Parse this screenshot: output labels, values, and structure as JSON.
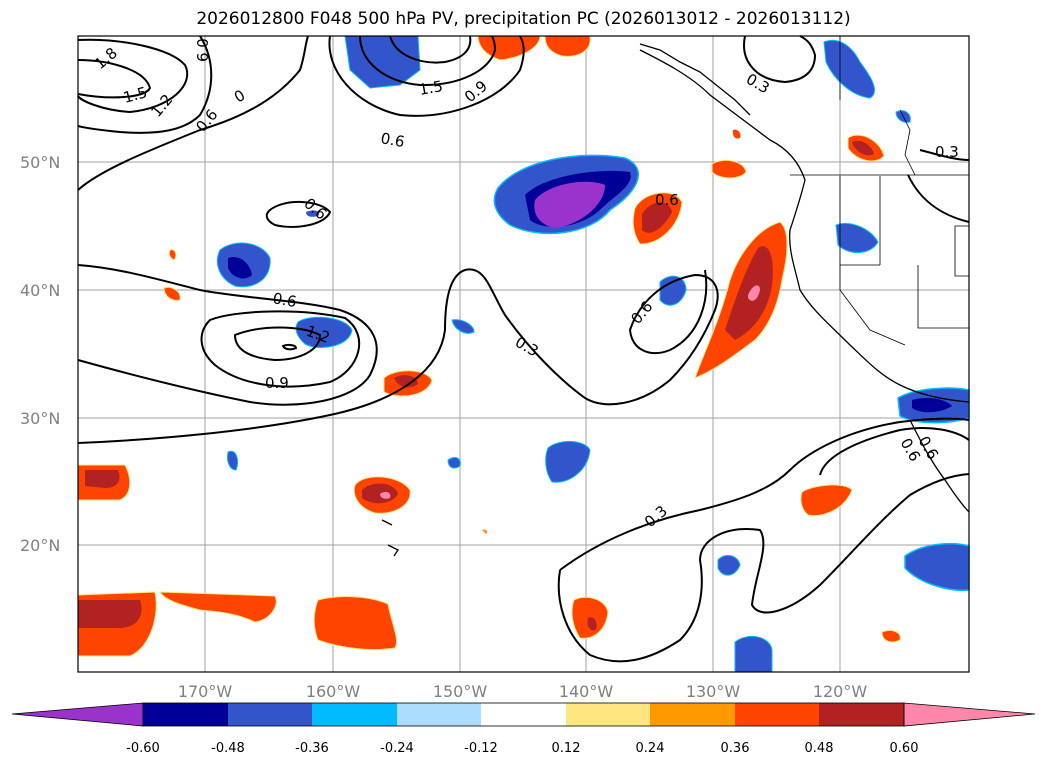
{
  "title": "2026012800 F048 500 hPa PV, precipitation PC (2026013012 - 2026013112)",
  "map": {
    "lat_labels": [
      "50°N",
      "40°N",
      "30°N",
      "20°N"
    ],
    "lon_labels": [
      "170°W",
      "160°W",
      "150°W",
      "140°W",
      "130°W",
      "120°W"
    ],
    "contour_labels": [
      "1.8",
      "1.5",
      "1.2",
      "0.6",
      "0",
      "6.0",
      "1.5",
      "0.9",
      "0.6",
      "0.6",
      "0.6",
      "0.3",
      "0.3",
      "0.6",
      "0.6",
      "1.2",
      "0.9",
      "0.3",
      "0.6",
      "0.3",
      "0.6"
    ]
  },
  "colorbar": {
    "ticks": [
      "-0.60",
      "-0.48",
      "-0.36",
      "-0.24",
      "-0.12",
      "0.12",
      "0.24",
      "0.36",
      "0.48",
      "0.60"
    ],
    "colors": [
      "#9933cc",
      "#000099",
      "#3355cc",
      "#00bbff",
      "#aaddff",
      "#ffffff",
      "#ffe680",
      "#ff9900",
      "#ff4400",
      "#b22222",
      "#ff88aa",
      "#ff88aa"
    ]
  }
}
